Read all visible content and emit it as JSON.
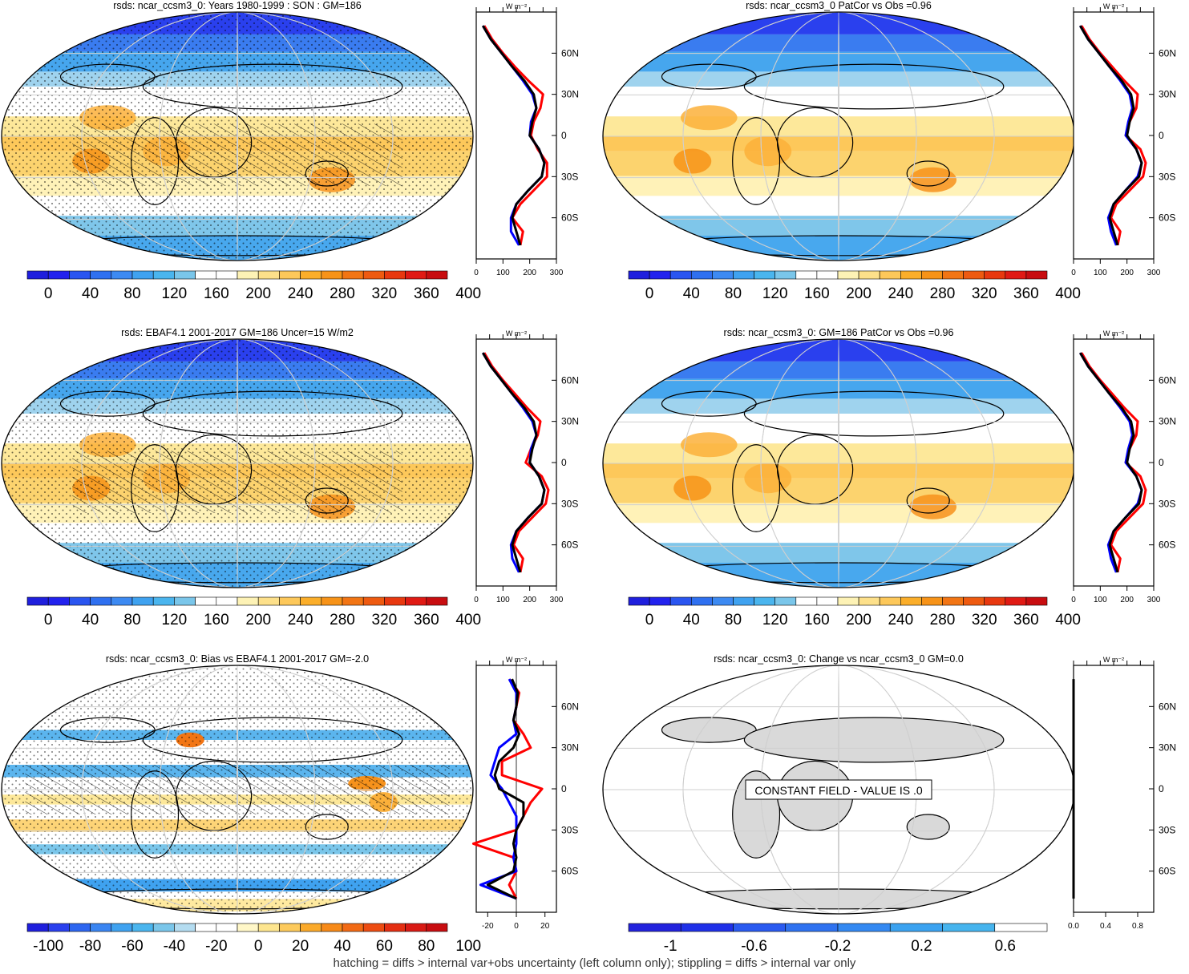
{
  "figure": {
    "footnote": "hatching = diffs > internal var+obs uncertainty (left column only); stippling = diffs > internal var only",
    "profile_unit": "W m⁻²",
    "lat_ticks": [
      "60N",
      "30N",
      "0",
      "30S",
      "60S"
    ]
  },
  "chart_data": [
    {
      "type": "heatmap",
      "title": "rsds: ncar_ccsm3_0: Years 1980-1999 : SON : GM=186",
      "colorbar": {
        "labels": [
          "0",
          "40",
          "80",
          "120",
          "160",
          "200",
          "240",
          "280",
          "320",
          "360",
          "400"
        ]
      },
      "profile": {
        "x_ticks": [
          "0",
          "100",
          "200",
          "300"
        ],
        "xlim": [
          0,
          300
        ],
        "lat": [
          80,
          70,
          60,
          50,
          40,
          30,
          20,
          10,
          0,
          -10,
          -20,
          -30,
          -40,
          -50,
          -60,
          -70,
          -80
        ],
        "series": [
          {
            "color": "#ff0000",
            "values": [
              30,
              60,
              100,
              145,
              195,
              250,
              240,
              215,
              205,
              230,
              265,
              265,
              215,
              165,
              135,
              175,
              165
            ]
          },
          {
            "color": "#0000ff",
            "values": [
              25,
              55,
              95,
              135,
              175,
              210,
              225,
              205,
              200,
              235,
              255,
              245,
              195,
              150,
              130,
              130,
              160
            ]
          },
          {
            "color": "#000000",
            "values": [
              25,
              55,
              95,
              135,
              180,
              215,
              225,
              210,
              200,
              235,
              255,
              245,
              195,
              150,
              135,
              150,
              165
            ]
          }
        ]
      }
    },
    {
      "type": "heatmap",
      "title": "rsds: ncar_ccsm3_0 PatCor vs Obs =0.96",
      "colorbar": {
        "labels": [
          "0",
          "40",
          "80",
          "120",
          "160",
          "200",
          "240",
          "280",
          "320",
          "360",
          "400"
        ]
      },
      "profile": {
        "x_ticks": [
          "0",
          "100",
          "200",
          "300"
        ],
        "xlim": [
          0,
          300
        ],
        "lat": [
          80,
          70,
          60,
          50,
          40,
          30,
          20,
          10,
          0,
          -10,
          -20,
          -30,
          -40,
          -50,
          -60,
          -70,
          -80
        ],
        "series": [
          {
            "color": "#ff0000",
            "values": [
              30,
              60,
              100,
              145,
              190,
              240,
              235,
              210,
              195,
              250,
              270,
              260,
              210,
              160,
              140,
              175,
              165
            ]
          },
          {
            "color": "#0000ff",
            "values": [
              25,
              55,
              95,
              135,
              175,
              210,
              220,
              205,
              195,
              235,
              255,
              240,
              195,
              150,
              130,
              140,
              160
            ]
          },
          {
            "color": "#000000",
            "values": [
              25,
              55,
              95,
              135,
              180,
              215,
              225,
              210,
              200,
              235,
              255,
              245,
              195,
              150,
              135,
              150,
              165
            ]
          }
        ]
      }
    },
    {
      "type": "heatmap",
      "title": "rsds: EBAF4.1 2001-2017 GM=186 Uncer=15 W/m2",
      "colorbar": {
        "labels": [
          "0",
          "40",
          "80",
          "120",
          "160",
          "200",
          "240",
          "280",
          "320",
          "360",
          "400"
        ]
      },
      "profile": {
        "x_ticks": [
          "0",
          "100",
          "200",
          "300"
        ],
        "xlim": [
          0,
          300
        ],
        "lat": [
          80,
          70,
          60,
          50,
          40,
          30,
          20,
          10,
          0,
          -10,
          -20,
          -30,
          -40,
          -50,
          -60,
          -70,
          -80
        ],
        "series": [
          {
            "color": "#ff0000",
            "values": [
              30,
              60,
              100,
              145,
              190,
              240,
              230,
              205,
              185,
              245,
              270,
              260,
              210,
              160,
              140,
              175,
              165
            ]
          },
          {
            "color": "#0000ff",
            "values": [
              25,
              55,
              95,
              135,
              175,
              210,
              225,
              205,
              200,
              235,
              255,
              245,
              195,
              150,
              130,
              135,
              160
            ]
          },
          {
            "color": "#000000",
            "values": [
              25,
              55,
              95,
              135,
              180,
              215,
              225,
              210,
              200,
              235,
              255,
              245,
              195,
              150,
              135,
              150,
              165
            ]
          }
        ]
      }
    },
    {
      "type": "heatmap",
      "title": "rsds: ncar_ccsm3_0: GM=186 PatCor vs Obs =0.96",
      "colorbar": {
        "labels": [
          "0",
          "40",
          "80",
          "120",
          "160",
          "200",
          "240",
          "280",
          "320",
          "360",
          "400"
        ]
      },
      "profile": {
        "x_ticks": [
          "0",
          "100",
          "200",
          "300"
        ],
        "xlim": [
          0,
          300
        ],
        "lat": [
          80,
          70,
          60,
          50,
          40,
          30,
          20,
          10,
          0,
          -10,
          -20,
          -30,
          -40,
          -50,
          -60,
          -70,
          -80
        ],
        "series": [
          {
            "color": "#ff0000",
            "values": [
              30,
              60,
              100,
              145,
              190,
              240,
              235,
              210,
              195,
              250,
              270,
              260,
              210,
              160,
              140,
              175,
              165
            ]
          },
          {
            "color": "#0000ff",
            "values": [
              25,
              55,
              95,
              135,
              175,
              210,
              220,
              205,
              195,
              235,
              255,
              240,
              195,
              150,
              130,
              140,
              160
            ]
          },
          {
            "color": "#000000",
            "values": [
              25,
              55,
              95,
              135,
              180,
              215,
              225,
              210,
              200,
              235,
              255,
              245,
              195,
              150,
              135,
              150,
              165
            ]
          }
        ]
      }
    },
    {
      "type": "heatmap",
      "title": "rsds: ncar_ccsm3_0: Bias vs EBAF4.1 2001-2017  GM=-2.0",
      "colorbar": {
        "labels": [
          "-100",
          "-80",
          "-60",
          "-40",
          "-20",
          "0",
          "20",
          "40",
          "60",
          "80",
          "100"
        ]
      },
      "profile": {
        "x_ticks": [
          "-20",
          "0",
          "20"
        ],
        "xlim": [
          -28,
          28
        ],
        "lat": [
          80,
          70,
          60,
          50,
          40,
          30,
          20,
          10,
          0,
          -10,
          -20,
          -30,
          -40,
          -50,
          -60,
          -70,
          -80
        ],
        "series": [
          {
            "color": "#ff0000",
            "values": [
              -5,
              2,
              0,
              -2,
              5,
              10,
              -10,
              -10,
              18,
              10,
              5,
              0,
              -30,
              -2,
              0,
              -5,
              0
            ]
          },
          {
            "color": "#0000ff",
            "values": [
              -5,
              0,
              0,
              -2,
              0,
              -12,
              -15,
              -18,
              -10,
              -5,
              0,
              0,
              0,
              -2,
              0,
              -25,
              0
            ]
          },
          {
            "color": "#000000",
            "values": [
              -3,
              1,
              0,
              -2,
              2,
              -2,
              -12,
              -15,
              -12,
              5,
              5,
              0,
              -2,
              0,
              -2,
              -20,
              0
            ]
          }
        ]
      }
    },
    {
      "type": "heatmap",
      "title": "rsds: ncar_ccsm3_0: Change vs ncar_ccsm3_0 GM=0.0",
      "annotation": "CONSTANT FIELD - VALUE IS .0",
      "colorbar": {
        "labels": [
          "-1",
          "-0.6",
          "-0.2",
          "0.2",
          "0.6"
        ]
      },
      "profile": {
        "x_ticks": [
          "0.0",
          "0.4",
          "0.8"
        ],
        "xlim": [
          0,
          1
        ],
        "lat": [
          80,
          70,
          60,
          50,
          40,
          30,
          20,
          10,
          0,
          -10,
          -20,
          -30,
          -40,
          -50,
          -60,
          -70,
          -80
        ],
        "series": [
          {
            "color": "#000000",
            "values": [
              0,
              0,
              0,
              0,
              0,
              0,
              0,
              0,
              0,
              0,
              0,
              0,
              0,
              0,
              0,
              0,
              0
            ]
          }
        ]
      }
    }
  ]
}
